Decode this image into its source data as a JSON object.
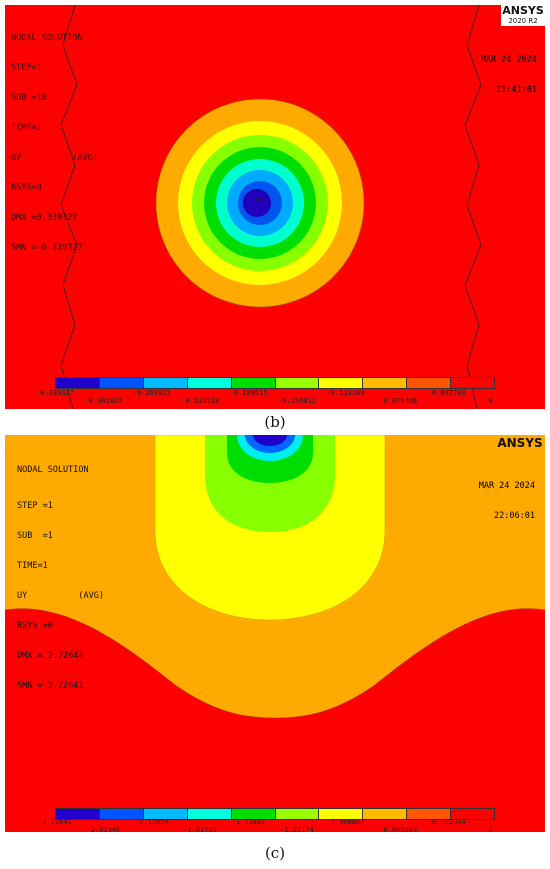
{
  "panel_b": {
    "title": "NODAL SOLUTION",
    "info_lines": [
      "STEP=1",
      "SUB =10",
      "TIME=1",
      "UY          (AVG)",
      "RSYS=0",
      "DMX =0.339327",
      "SMN =-0.339327"
    ],
    "date": "MAR 24 2024",
    "time": "21:41:01",
    "logo": "ANSYS",
    "version": "2020 R2",
    "min_marker": "MN",
    "legend_top": [
      "-0.339327",
      "-0.263921",
      "-0.188515",
      "-0.113109",
      "-0.037703"
    ],
    "legend_bottom": [
      "-0.301624",
      "-0.226218",
      "-0.150812",
      "-0.075406",
      "0"
    ],
    "caption": "(b)"
  },
  "panel_c": {
    "title": "NODAL SOLUTION",
    "info_lines": [
      "STEP =1",
      "SUB  =1",
      "TIME=1",
      "UY          (AVG)",
      "RSYS =0",
      "DMX = 2.72641",
      "SMN =-2.72641"
    ],
    "date": "MAR 24 2024",
    "time": "22:06:01",
    "logo": "ANSYS",
    "version": "2020 R2",
    "legend_top": [
      "-2.72641",
      "-2.12054",
      "-1.51467",
      "-0.908803",
      "-0.302934"
    ],
    "legend_bottom": [
      "-2.42348",
      "-1.81761",
      "-1.21174",
      "-0.605869",
      "0"
    ],
    "caption": "(c)"
  },
  "colors": {
    "legend": [
      "#2200cc",
      "#0055ff",
      "#00bbff",
      "#00ffdd",
      "#00dd00",
      "#99ff00",
      "#ffff00",
      "#ffbb00",
      "#ff5500",
      "#ff0000"
    ],
    "plot_orange": "#ffaa00",
    "plot_red": "#ff0000"
  }
}
